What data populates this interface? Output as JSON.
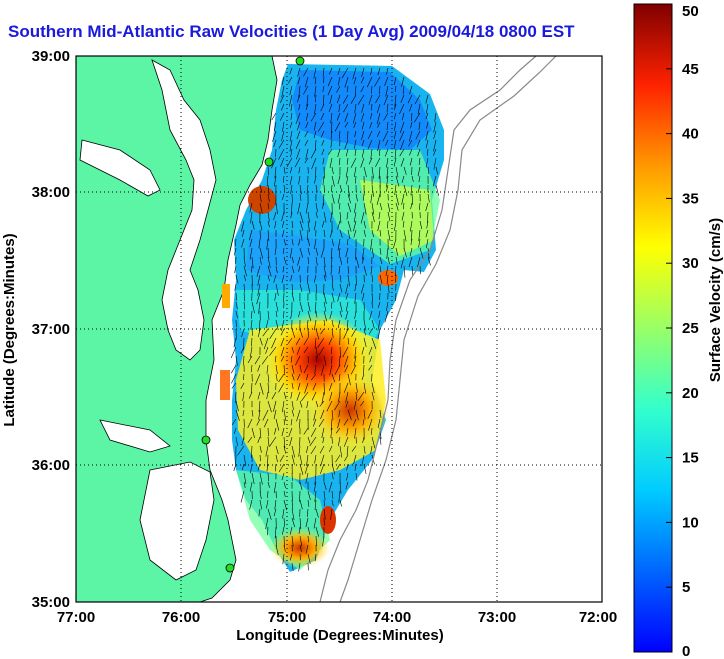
{
  "title": "Southern Mid-Atlantic Raw Velocities (1 Day Avg) 2009/04/18 0800 EST",
  "map": {
    "xlabel": "Longitude (Degrees:Minutes)",
    "ylabel": "Latitude (Degrees:Minutes)",
    "x_ticks": [
      "77:00",
      "76:00",
      "75:00",
      "74:00",
      "73:00",
      "72:00"
    ],
    "y_ticks": [
      "39:00",
      "38:00",
      "37:00",
      "36:00",
      "35:00"
    ],
    "lon_range": [
      -77,
      -72
    ],
    "lat_range": [
      35,
      39
    ],
    "grid": true,
    "land_color": "#5cf5a6",
    "coastline_color": "#000000",
    "bathymetry_color": "#888888",
    "station_color": "#22dd22"
  },
  "colorbar": {
    "label": "Surface Velocity (cm/s)",
    "ticks": [
      "50",
      "45",
      "40",
      "35",
      "30",
      "25",
      "20",
      "15",
      "10",
      "5",
      "0"
    ],
    "range": [
      0,
      50
    ],
    "colormap": "jet"
  }
}
